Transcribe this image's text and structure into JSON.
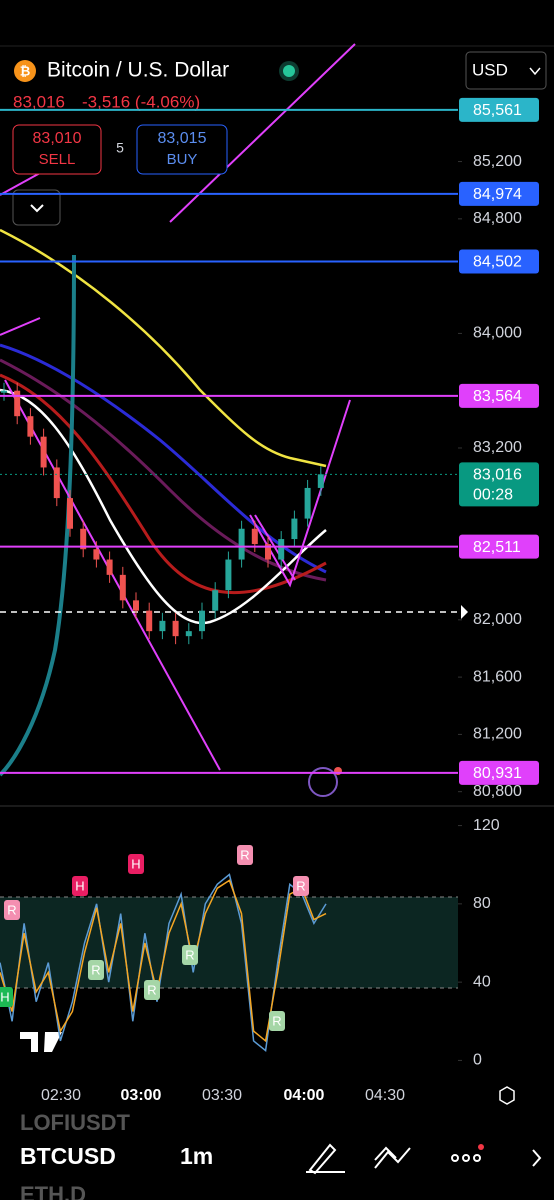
{
  "header": {
    "title": "Bitcoin / U.S. Dollar",
    "price": "83,016",
    "change": "-3,516 (-4.06%)",
    "currency": "USD",
    "sell": {
      "price": "83,010",
      "label": "SELL"
    },
    "spread": "5",
    "buy": {
      "price": "83,015",
      "label": "BUY"
    }
  },
  "chart_data": [
    {
      "type": "candlestick",
      "ylim": [
        80700,
        86000
      ],
      "yticks": [
        {
          "value": 85200,
          "label": "85,200"
        },
        {
          "value": 84800,
          "label": "84,800"
        },
        {
          "value": 84000,
          "label": "84,000"
        },
        {
          "value": 83200,
          "label": "83,200"
        },
        {
          "value": 82000,
          "label": "82,000"
        },
        {
          "value": 81600,
          "label": "81,600"
        },
        {
          "value": 81200,
          "label": "81,200"
        },
        {
          "value": 80800,
          "label": "80,800"
        }
      ],
      "values": [
        83600,
        83422,
        83279,
        83064,
        82850,
        82636,
        82493,
        82421,
        82314,
        82136,
        82064,
        81921,
        81993,
        81886,
        81921,
        82064,
        82207,
        82421,
        82636,
        82529,
        82421,
        82564,
        82707,
        82921,
        83016
      ],
      "price_tags": [
        {
          "value": 85561,
          "label": "85,561",
          "color": "#2bb5c9"
        },
        {
          "value": 84974,
          "label": "84,974",
          "color": "#2962ff"
        },
        {
          "value": 84502,
          "label": "84,502",
          "color": "#2962ff"
        },
        {
          "value": 83564,
          "label": "83,564",
          "color": "#e040fb"
        },
        {
          "value": 83016,
          "label": "83,016",
          "color": "#089981",
          "countdown": "00:28"
        },
        {
          "value": 82511,
          "label": "82,511",
          "color": "#e040fb"
        },
        {
          "value": 80931,
          "label": "80,931",
          "color": "#e040fb"
        }
      ],
      "x_labels": [
        "02:30",
        "03:00",
        "03:30",
        "04:00",
        "04:30"
      ]
    },
    {
      "type": "line",
      "ylim": [
        -10,
        130
      ],
      "yticks": [
        0,
        40,
        80,
        120
      ],
      "series": [
        {
          "color": "#5b9bd5",
          "values": [
            50,
            20,
            70,
            30,
            50,
            10,
            30,
            60,
            80,
            40,
            75,
            20,
            65,
            30,
            70,
            85,
            45,
            80,
            90,
            95,
            70,
            10,
            5,
            50,
            90,
            85,
            70,
            80
          ]
        },
        {
          "color": "#f5a623",
          "values": [
            45,
            25,
            65,
            35,
            45,
            15,
            25,
            55,
            78,
            45,
            70,
            25,
            60,
            35,
            65,
            80,
            50,
            75,
            88,
            92,
            75,
            15,
            10,
            45,
            85,
            88,
            72,
            75
          ]
        }
      ],
      "markers": [
        "H",
        "R",
        "H",
        "R",
        "H",
        "R",
        "R",
        "R",
        "R",
        "R"
      ]
    }
  ],
  "footer": {
    "symbol_above": "LOFIUSDT",
    "symbol": "BTCUSD",
    "interval": "1m",
    "symbol_below": "ETH.D"
  }
}
